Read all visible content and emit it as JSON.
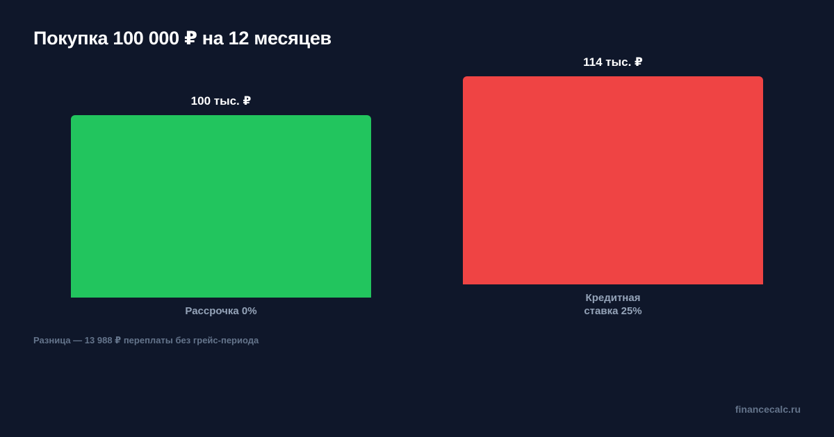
{
  "title": "Покупка 100 000 ₽ на 12 месяцев",
  "note": "Разница — 13 988 ₽ переплаты без грейс-периода",
  "brand": "financecalc.ru",
  "chart_data": {
    "type": "bar",
    "title": "Покупка 100 000 ₽ на 12 месяцев",
    "categories": [
      "Рассрочка 0%",
      "Кредитная\nставка 25%"
    ],
    "values": [
      100,
      114
    ],
    "unit": "тыс. ₽",
    "data_labels": [
      "100 тыс. ₽",
      "114 тыс. ₽"
    ],
    "colors": [
      "#22c55e",
      "#ef4444"
    ],
    "grid": false,
    "legend": "none"
  }
}
